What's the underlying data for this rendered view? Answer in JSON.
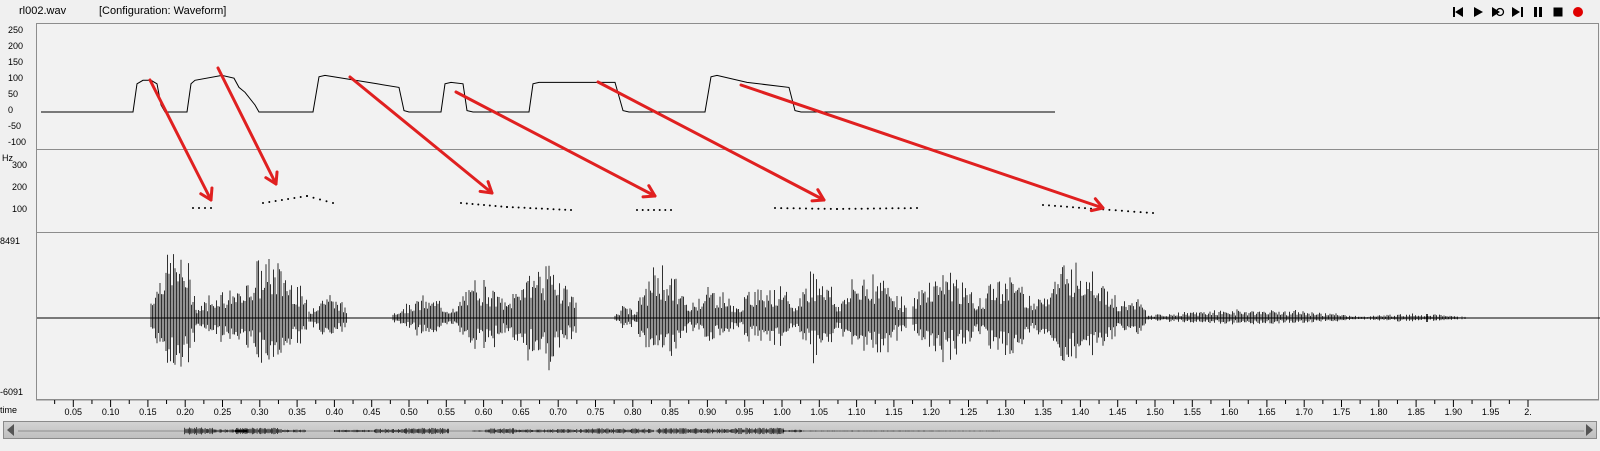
{
  "header": {
    "file_name": "rl002.wav",
    "configuration": "[Configuration: Waveform]"
  },
  "transport": [
    {
      "name": "skip-to-start-icon"
    },
    {
      "name": "play-icon"
    },
    {
      "name": "loop-play-icon"
    },
    {
      "name": "play-selection-icon"
    },
    {
      "name": "pause-icon"
    },
    {
      "name": "stop-icon"
    },
    {
      "name": "record-icon",
      "color": "#e00000"
    }
  ],
  "formant_panel": {
    "y_ticks": [
      "250",
      "200",
      "150",
      "100",
      "50",
      "0",
      "-50",
      "-100"
    ],
    "chart_data": {
      "type": "line",
      "x": [
        0.0,
        0.1,
        0.13,
        0.16,
        0.18,
        0.19,
        0.25,
        0.26,
        0.27,
        0.28,
        0.29,
        0.3,
        0.33,
        0.34,
        0.35,
        0.36,
        0.37,
        0.38,
        0.44,
        0.45,
        0.46,
        0.47,
        0.52,
        0.53,
        0.54,
        0.55,
        0.56,
        0.57,
        0.6,
        0.61,
        0.62,
        0.63,
        0.64,
        0.65,
        0.66,
        0.67,
        0.72,
        0.73,
        0.74,
        0.75,
        0.76,
        0.77,
        0.78,
        0.79,
        0.8,
        0.8,
        0.87,
        0.88,
        0.89,
        0.9,
        0.91,
        0.92,
        1.0,
        1.0
      ],
      "values": [
        0,
        0,
        0,
        0,
        0,
        0,
        0,
        80,
        120,
        120,
        115,
        0,
        0,
        0,
        0,
        5,
        0,
        0,
        0,
        0,
        0,
        5,
        0,
        0,
        0,
        0,
        0,
        0,
        0,
        0,
        0,
        0,
        0,
        0,
        0,
        0,
        0,
        0,
        0,
        0,
        0,
        0,
        0,
        0,
        0,
        0,
        0,
        0,
        0,
        0,
        0,
        0,
        0,
        0
      ],
      "ylim": [
        -100,
        250
      ]
    }
  },
  "pitch_panel": {
    "unit": "Hz",
    "y_ticks": [
      "300",
      "200",
      "100"
    ],
    "chart_data": {
      "type": "scatter",
      "ylim": [
        0,
        400
      ]
    }
  },
  "wave_panel": {
    "y_max": "8491",
    "y_min": "-6091"
  },
  "time_axis": {
    "label": "time",
    "ticks": [
      "0.05",
      "0.10",
      "0.15",
      "0.20",
      "0.25",
      "0.30",
      "0.35",
      "0.40",
      "0.45",
      "0.50",
      "0.55",
      "0.60",
      "0.65",
      "0.70",
      "0.75",
      "0.80",
      "0.85",
      "0.90",
      "0.95",
      "1.00",
      "1.05",
      "1.10",
      "1.15",
      "1.20",
      "1.25",
      "1.30",
      "1.35",
      "1.40",
      "1.45",
      "1.50",
      "1.55",
      "1.60",
      "1.65",
      "1.70",
      "1.75",
      "1.80",
      "1.85",
      "1.90",
      "1.95",
      "2."
    ]
  },
  "annotations": {
    "arrow_color": "#e02020"
  }
}
